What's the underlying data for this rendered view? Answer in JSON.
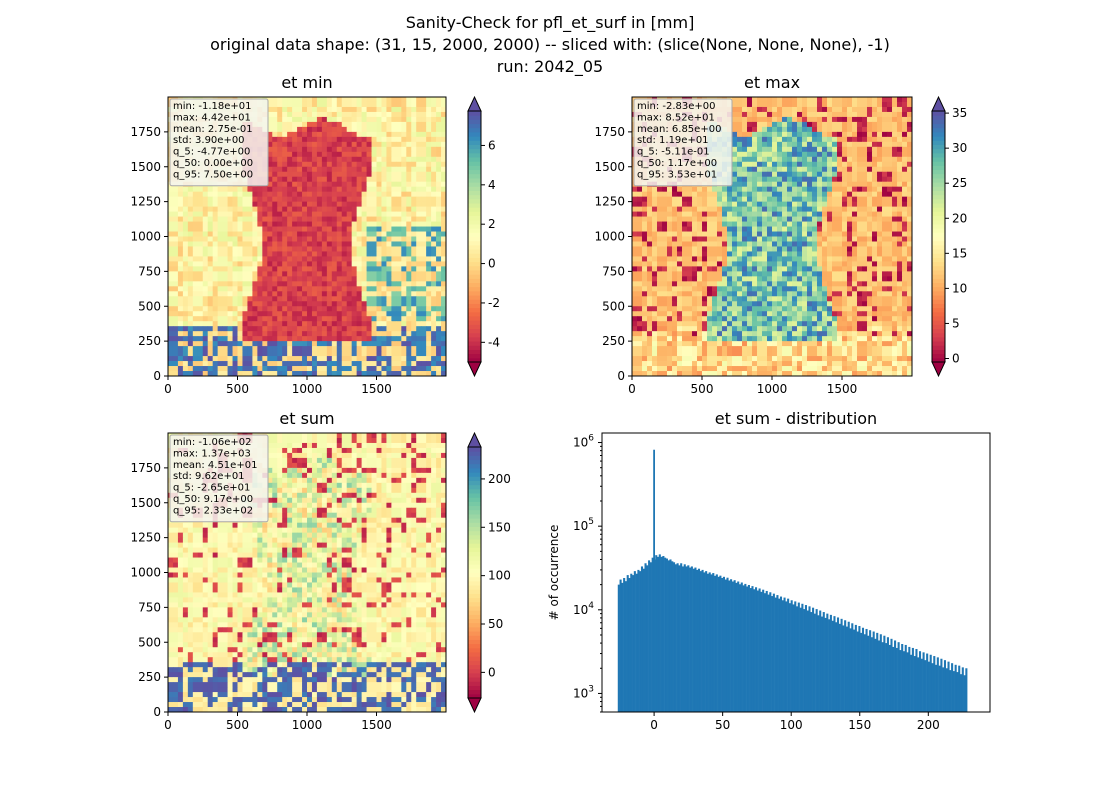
{
  "suptitle": {
    "line1": "Sanity-Check for pfl_et_surf in [mm]",
    "line2": "original data shape: (31, 15, 2000, 2000) -- sliced with: (slice(None, None, None), -1)",
    "line3": "run: 2042_05"
  },
  "colormap": {
    "name": "Spectral",
    "stops": [
      "#9e0142",
      "#d53e4f",
      "#f46d43",
      "#fdae61",
      "#fee08b",
      "#ffffbf",
      "#e6f598",
      "#abdda4",
      "#66c2a5",
      "#3288bd",
      "#5e4fa2"
    ]
  },
  "bar_color": "#1f77b4",
  "maps": [
    {
      "title": "et min",
      "stats": [
        "min: -1.18e+01",
        "max: 4.42e+01",
        "mean: 2.75e-01",
        "std: 3.90e+00",
        "q_5: -4.77e+00",
        "q_50: 0.00e+00",
        "q_95: 7.50e+00"
      ],
      "x_ticks": [
        "0",
        "500",
        "1000",
        "1500"
      ],
      "y_ticks": [
        "0",
        "250",
        "500",
        "750",
        "1000",
        "1250",
        "1500",
        "1750"
      ],
      "colorbar": {
        "vmin": -5.0,
        "vmax": 7.75,
        "ticks": [
          "-4",
          "-2",
          "0",
          "2",
          "4",
          "6"
        ]
      }
    },
    {
      "title": "et max",
      "stats": [
        "min: -2.83e+00",
        "max: 8.52e+01",
        "mean: 6.85e+00",
        "std: 1.19e+01",
        "q_5: -5.11e-01",
        "q_50: 1.17e+00",
        "q_95: 3.53e+01"
      ],
      "x_ticks": [
        "0",
        "500",
        "1000",
        "1500"
      ],
      "y_ticks": [
        "0",
        "250",
        "500",
        "750",
        "1000",
        "1250",
        "1500",
        "1750"
      ],
      "colorbar": {
        "vmin": -0.5,
        "vmax": 35.3,
        "ticks": [
          "0",
          "5",
          "10",
          "15",
          "20",
          "25",
          "30",
          "35"
        ]
      }
    },
    {
      "title": "et sum",
      "stats": [
        "min: -1.06e+02",
        "max: 1.37e+03",
        "mean: 4.51e+01",
        "std: 9.62e+01",
        "q_5: -2.65e+01",
        "q_50: 9.17e+00",
        "q_95: 2.33e+02"
      ],
      "x_ticks": [
        "0",
        "500",
        "1000",
        "1500"
      ],
      "y_ticks": [
        "0",
        "250",
        "500",
        "750",
        "1000",
        "1250",
        "1500",
        "1750"
      ],
      "colorbar": {
        "vmin": -26.5,
        "vmax": 233,
        "ticks": [
          "0",
          "50",
          "100",
          "150",
          "200"
        ]
      }
    }
  ],
  "chart_data": {
    "type": "bar",
    "title": "et sum - distribution",
    "xlabel": "",
    "ylabel": "# of occurrence",
    "y_scale": "log",
    "xlim": [
      -38,
      245
    ],
    "ylim": [
      600,
      1300000
    ],
    "x_ticks": [
      "0",
      "50",
      "100",
      "150",
      "200"
    ],
    "y_tick_labels": [
      "10^3",
      "10^4",
      "10^5",
      "10^6"
    ],
    "y_tick_values": [
      1000,
      10000,
      100000,
      1000000
    ],
    "bin_start": -26.5,
    "bin_width": 1.3,
    "spike": {
      "x": 0,
      "value": 820000
    },
    "values": [
      20000,
      23000,
      21000,
      24000,
      22000,
      26000,
      24000,
      27000,
      26000,
      29000,
      27000,
      30000,
      29000,
      33000,
      31000,
      36000,
      34000,
      39000,
      37000,
      42000,
      40000,
      45000,
      43000,
      46000,
      43000,
      44000,
      42000,
      41000,
      39000,
      40000,
      38000,
      37000,
      35000,
      36000,
      34000,
      36000,
      33000,
      35000,
      33000,
      34000,
      32000,
      33000,
      31000,
      32000,
      30000,
      31000,
      29000,
      30000,
      28000,
      29000,
      27000,
      28000,
      26500,
      27500,
      25500,
      26500,
      24800,
      25600,
      24000,
      24800,
      23000,
      24200,
      22400,
      23200,
      21800,
      22600,
      21000,
      21800,
      20200,
      21200,
      19600,
      20400,
      19000,
      19800,
      18200,
      19200,
      17600,
      18600,
      17000,
      18000,
      16400,
      17400,
      15800,
      16800,
      15200,
      16200,
      14600,
      15600,
      14000,
      15000,
      13600,
      14400,
      13000,
      14000,
      12600,
      13600,
      12000,
      13000,
      11600,
      12600,
      11000,
      12200,
      10600,
      11800,
      10200,
      11400,
      9800,
      11000,
      9400,
      10600,
      9000,
      10200,
      8600,
      9800,
      8300,
      9400,
      8000,
      9000,
      7700,
      8700,
      7400,
      8400,
      7100,
      8100,
      6800,
      7800,
      6500,
      7500,
      6300,
      7200,
      6000,
      6900,
      5800,
      6600,
      5500,
      6400,
      5300,
      6100,
      5100,
      5900,
      4900,
      5700,
      4700,
      5500,
      4500,
      5300,
      4300,
      5100,
      4100,
      4900,
      4000,
      4700,
      3800,
      4500,
      3600,
      4300,
      3500,
      4100,
      3300,
      3900,
      3200,
      3800,
      3100,
      3600,
      2900,
      3500,
      2800,
      3400,
      2700,
      3200,
      2600,
      3100,
      2500,
      3000,
      2400,
      2900,
      2300,
      2800,
      2200,
      2700,
      2150,
      2600,
      2050,
      2500,
      2000,
      2400,
      1900,
      2300,
      1850,
      2200,
      1800,
      2150,
      1700,
      2050,
      1650,
      2000
    ]
  }
}
